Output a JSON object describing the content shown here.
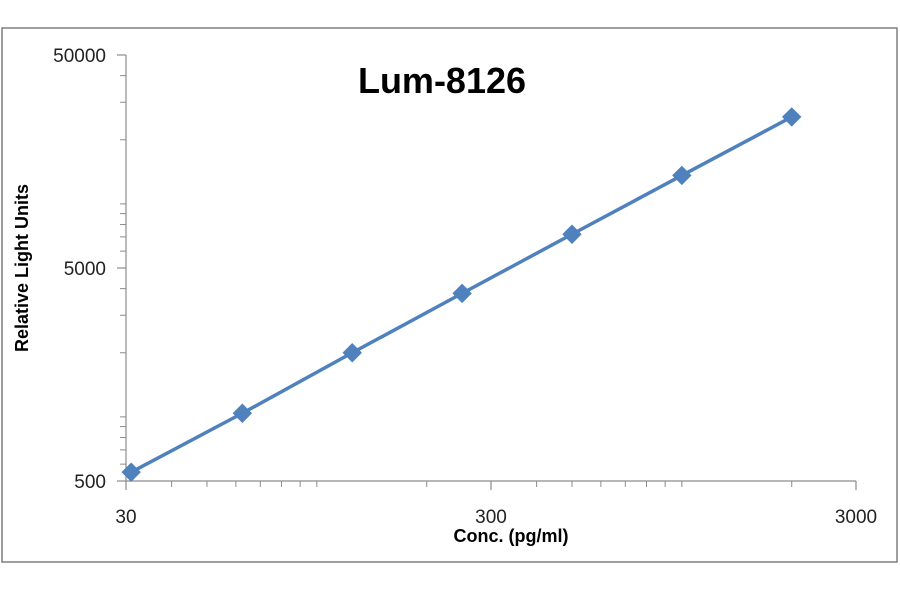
{
  "chart_data": {
    "type": "line",
    "title": "Lum-8126",
    "xlabel": "Conc. (pg/ml)",
    "ylabel": "Relative Light Units",
    "x_scale": "log",
    "y_scale": "log",
    "xlim": [
      30,
      3000
    ],
    "ylim": [
      500,
      50000
    ],
    "x_ticks": [
      "30",
      "300",
      "3000"
    ],
    "y_ticks": [
      "500",
      "5000",
      "50000"
    ],
    "grid": false,
    "legend": "none",
    "series": [
      {
        "x": [
          31,
          62.5,
          125,
          250,
          500,
          1000,
          2000
        ],
        "y": [
          550,
          1040,
          2000,
          3800,
          7200,
          13600,
          25600
        ],
        "marker": "diamond"
      }
    ]
  },
  "colors": {
    "series": "#4f81bd",
    "frame": "#7f7f7f",
    "axis": "#8c8c8c"
  }
}
